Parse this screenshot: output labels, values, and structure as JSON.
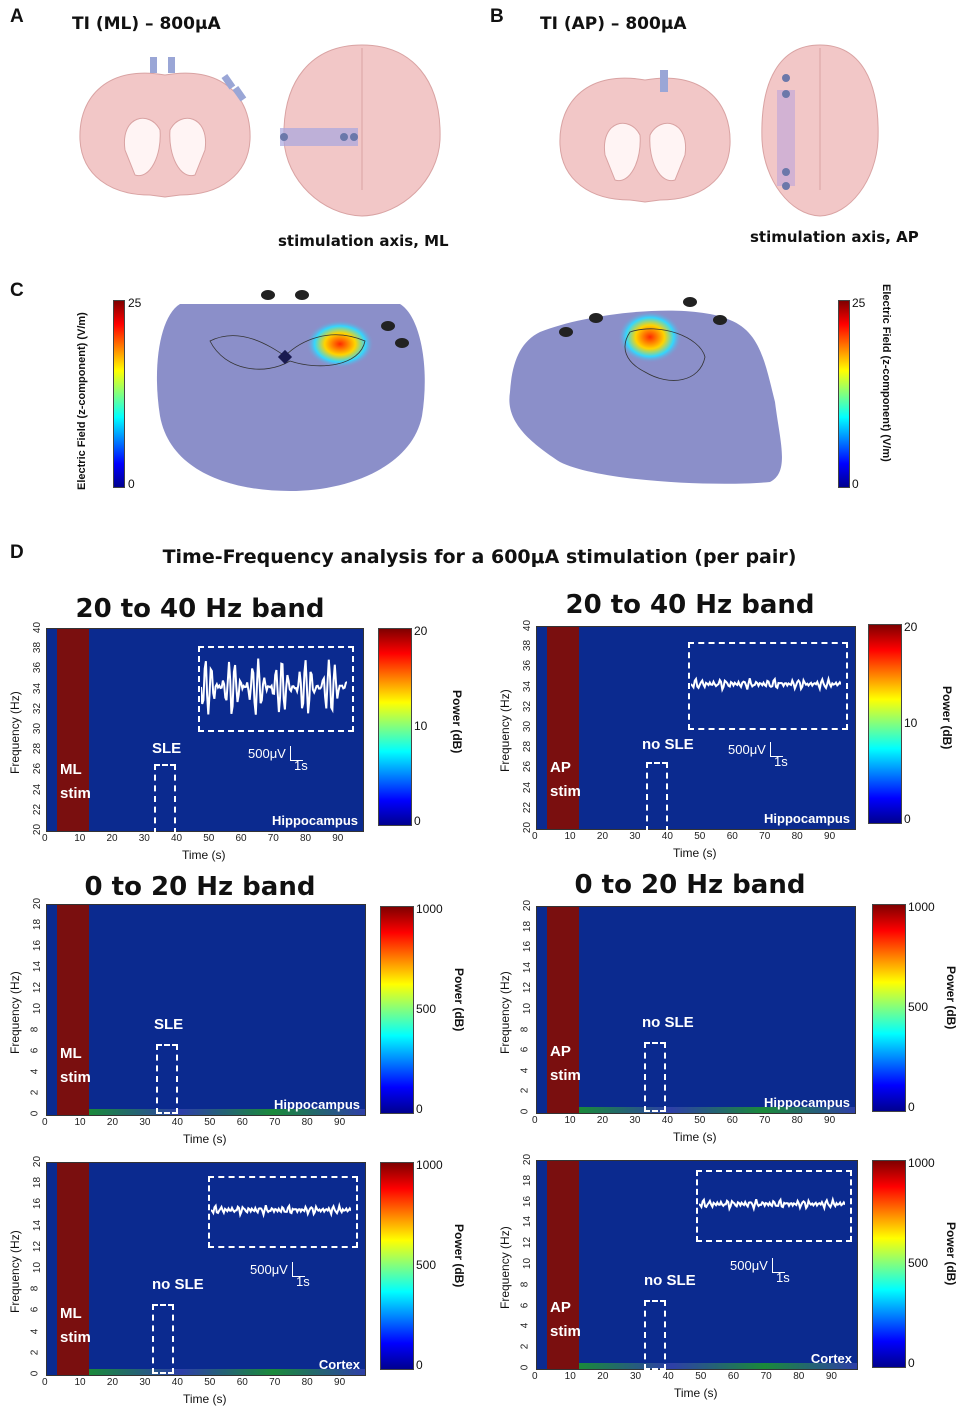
{
  "panels": {
    "A": {
      "letter": "A",
      "title": "TI (ML) – 800μA",
      "axis_caption": "stimulation axis, ML"
    },
    "B": {
      "letter": "B",
      "title": "TI (AP) – 800μA",
      "axis_caption": "stimulation axis, AP"
    },
    "C": {
      "letter": "C",
      "left_colorbar": {
        "label": "Electric Field (z-component) (V/m)",
        "max": "25",
        "min": "0"
      },
      "right_colorbar": {
        "label": "Electric Field (z-component) (V/m)",
        "max": "25",
        "min": "0"
      }
    },
    "D": {
      "letter": "D",
      "title": "Time-Frequency analysis for a 600μA stimulation (per pair)"
    }
  },
  "band_titles": {
    "high": "20 to 40 Hz band",
    "low": "0 to 20 Hz band"
  },
  "axes": {
    "x_label": "Time (s)",
    "y_label": "Frequency (Hz)",
    "colorbar_label": "Power (dB)"
  },
  "x_ticks": [
    "0",
    "10",
    "20",
    "30",
    "40",
    "50",
    "60",
    "70",
    "80",
    "90"
  ],
  "y_ticks_high": [
    "40",
    "38",
    "36",
    "34",
    "32",
    "30",
    "28",
    "26",
    "24",
    "22",
    "20"
  ],
  "y_ticks_low": [
    "20",
    "18",
    "16",
    "14",
    "12",
    "10",
    "8",
    "6",
    "4",
    "2",
    "0"
  ],
  "spectrograms": [
    {
      "stim_line1": "ML",
      "stim_line2": "stim",
      "event": "SLE",
      "region": "Hippocampus",
      "cbar_max": "20",
      "cbar_mid": "10",
      "cbar_min": "0",
      "scale_v": "500μV",
      "scale_t": "1s"
    },
    {
      "stim_line1": "AP",
      "stim_line2": "stim",
      "event": "no SLE",
      "region": "Hippocampus",
      "cbar_max": "20",
      "cbar_mid": "10",
      "cbar_min": "0",
      "scale_v": "500μV",
      "scale_t": "1s"
    },
    {
      "stim_line1": "ML",
      "stim_line2": "stim",
      "event": "SLE",
      "region": "Hippocampus",
      "cbar_max": "1000",
      "cbar_mid": "500",
      "cbar_min": "0"
    },
    {
      "stim_line1": "AP",
      "stim_line2": "stim",
      "event": "no SLE",
      "region": "Hippocampus",
      "cbar_max": "1000",
      "cbar_mid": "500",
      "cbar_min": "0"
    },
    {
      "stim_line1": "ML",
      "stim_line2": "stim",
      "event": "no SLE",
      "region": "Cortex",
      "cbar_max": "1000",
      "cbar_mid": "500",
      "cbar_min": "0",
      "scale_v": "500μV",
      "scale_t": "1s"
    },
    {
      "stim_line1": "AP",
      "stim_line2": "stim",
      "event": "no SLE",
      "region": "Cortex",
      "cbar_max": "1000",
      "cbar_mid": "500",
      "cbar_min": "0",
      "scale_v": "500μV",
      "scale_t": "1s"
    }
  ],
  "colors": {
    "brain": "#f2c7c7",
    "field_bg": "#8b8fc9",
    "spec_bg": "#0b2a8f",
    "stim": "#7a0f0f"
  }
}
